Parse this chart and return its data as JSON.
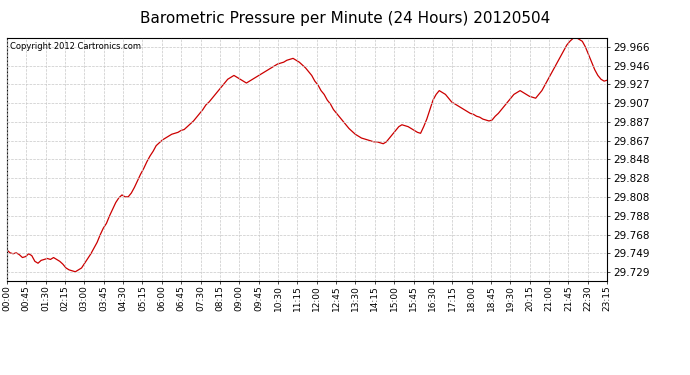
{
  "title": "Barometric Pressure per Minute (24 Hours) 20120504",
  "copyright_text": "Copyright 2012 Cartronics.com",
  "line_color": "#cc0000",
  "bg_color": "#ffffff",
  "plot_bg_color": "#ffffff",
  "grid_color": "#c8c8c8",
  "title_fontsize": 11,
  "yticks": [
    29.729,
    29.749,
    29.768,
    29.788,
    29.808,
    29.828,
    29.848,
    29.867,
    29.887,
    29.907,
    29.927,
    29.946,
    29.966
  ],
  "xtick_labels": [
    "00:00",
    "00:45",
    "01:30",
    "02:15",
    "03:00",
    "03:45",
    "04:30",
    "05:15",
    "06:00",
    "06:45",
    "07:30",
    "08:15",
    "09:00",
    "09:45",
    "10:30",
    "11:15",
    "12:00",
    "12:45",
    "13:30",
    "14:15",
    "15:00",
    "15:45",
    "16:30",
    "17:15",
    "18:00",
    "18:45",
    "19:30",
    "20:15",
    "21:00",
    "21:45",
    "22:30",
    "23:15"
  ],
  "ylim": [
    29.719,
    29.976
  ],
  "pressure_values": [
    29.752,
    29.749,
    29.748,
    29.749,
    29.747,
    29.744,
    29.745,
    29.748,
    29.746,
    29.74,
    29.738,
    29.741,
    29.742,
    29.743,
    29.742,
    29.744,
    29.742,
    29.74,
    29.737,
    29.733,
    29.731,
    29.73,
    29.729,
    29.731,
    29.733,
    29.738,
    29.743,
    29.748,
    29.754,
    29.76,
    29.768,
    29.775,
    29.78,
    29.788,
    29.795,
    29.802,
    29.807,
    29.81,
    29.808,
    29.808,
    29.812,
    29.818,
    29.825,
    29.832,
    29.838,
    29.845,
    29.851,
    29.856,
    29.862,
    29.865,
    29.868,
    29.87,
    29.872,
    29.874,
    29.875,
    29.876,
    29.878,
    29.879,
    29.882,
    29.885,
    29.888,
    29.892,
    29.896,
    29.9,
    29.905,
    29.908,
    29.912,
    29.916,
    29.92,
    29.924,
    29.928,
    29.932,
    29.934,
    29.936,
    29.934,
    29.932,
    29.93,
    29.928,
    29.93,
    29.932,
    29.934,
    29.936,
    29.938,
    29.94,
    29.942,
    29.944,
    29.946,
    29.948,
    29.949,
    29.95,
    29.952,
    29.953,
    29.954,
    29.952,
    29.95,
    29.947,
    29.944,
    29.94,
    29.936,
    29.93,
    29.926,
    29.92,
    29.916,
    29.91,
    29.906,
    29.9,
    29.896,
    29.892,
    29.888,
    29.884,
    29.88,
    29.877,
    29.874,
    29.872,
    29.87,
    29.869,
    29.868,
    29.867,
    29.866,
    29.866,
    29.865,
    29.864,
    29.866,
    29.87,
    29.874,
    29.878,
    29.882,
    29.884,
    29.883,
    29.882,
    29.88,
    29.878,
    29.876,
    29.875,
    29.882,
    29.89,
    29.9,
    29.91,
    29.916,
    29.92,
    29.918,
    29.916,
    29.912,
    29.908,
    29.906,
    29.904,
    29.902,
    29.9,
    29.898,
    29.896,
    29.895,
    29.893,
    29.892,
    29.89,
    29.889,
    29.888,
    29.889,
    29.893,
    29.896,
    29.9,
    29.904,
    29.908,
    29.912,
    29.916,
    29.918,
    29.92,
    29.918,
    29.916,
    29.914,
    29.913,
    29.912,
    29.916,
    29.92,
    29.926,
    29.932,
    29.938,
    29.944,
    29.95,
    29.956,
    29.962,
    29.968,
    29.972,
    29.975,
    29.976,
    29.974,
    29.972,
    29.966,
    29.958,
    29.95,
    29.942,
    29.936,
    29.932,
    29.93,
    29.931
  ]
}
